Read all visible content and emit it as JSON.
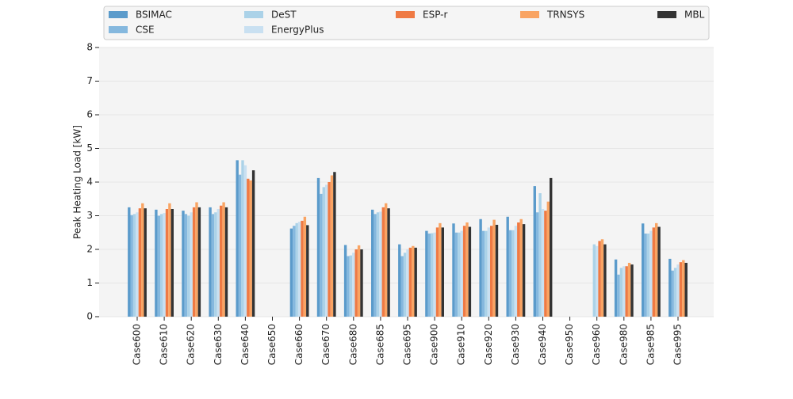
{
  "chart_data": {
    "type": "bar",
    "y_label": "Peak Heating Load [kW]",
    "categories": [
      "Case600",
      "Case610",
      "Case620",
      "Case630",
      "Case640",
      "Case650",
      "Case660",
      "Case670",
      "Case680",
      "Case685",
      "Case695",
      "Case900",
      "Case910",
      "Case920",
      "Case930",
      "Case940",
      "Case950",
      "Case960",
      "Case980",
      "Case985",
      "Case995"
    ],
    "series": [
      {
        "name": "BSIMAC",
        "color": "#5b9bcb",
        "values": [
          3.25,
          3.18,
          3.15,
          3.25,
          4.65,
          null,
          2.62,
          4.12,
          2.13,
          3.18,
          2.15,
          2.55,
          2.77,
          2.9,
          2.97,
          3.88,
          null,
          null,
          1.7,
          2.77,
          1.72
        ]
      },
      {
        "name": "CSE",
        "color": "#85b8de",
        "values": [
          3.02,
          3.0,
          3.05,
          3.05,
          4.22,
          null,
          2.7,
          3.65,
          1.8,
          3.05,
          1.8,
          2.47,
          2.5,
          2.55,
          2.57,
          3.1,
          null,
          null,
          1.25,
          2.47,
          1.37
        ]
      },
      {
        "name": "DeST",
        "color": "#abd2e8",
        "values": [
          3.05,
          3.05,
          3.0,
          3.1,
          4.65,
          null,
          2.78,
          3.85,
          1.82,
          3.1,
          1.9,
          2.48,
          2.5,
          2.55,
          2.57,
          3.67,
          null,
          2.15,
          1.45,
          2.47,
          1.45
        ]
      },
      {
        "name": "EnergyPlus",
        "color": "#c9e0f1",
        "values": [
          3.1,
          3.08,
          3.1,
          3.2,
          4.5,
          null,
          2.82,
          3.92,
          1.9,
          3.12,
          2.0,
          2.5,
          2.55,
          2.65,
          2.7,
          3.2,
          null,
          2.1,
          1.5,
          2.55,
          1.55
        ]
      },
      {
        "name": "ESP-r",
        "color": "#ef7a44",
        "values": [
          3.22,
          3.2,
          3.25,
          3.3,
          4.1,
          null,
          2.85,
          4.0,
          2.0,
          3.25,
          2.05,
          2.65,
          2.7,
          2.7,
          2.8,
          3.15,
          null,
          2.25,
          1.5,
          2.65,
          1.62
        ]
      },
      {
        "name": "TRNSYS",
        "color": "#f9a463",
        "values": [
          3.37,
          3.37,
          3.4,
          3.4,
          4.05,
          null,
          2.97,
          4.2,
          2.12,
          3.37,
          2.1,
          2.78,
          2.8,
          2.88,
          2.9,
          3.42,
          null,
          2.3,
          1.6,
          2.78,
          1.68
        ]
      },
      {
        "name": "MBL",
        "color": "#333333",
        "values": [
          3.22,
          3.2,
          3.25,
          3.25,
          4.35,
          null,
          2.72,
          4.3,
          2.0,
          3.22,
          2.05,
          2.65,
          2.67,
          2.73,
          2.75,
          4.12,
          null,
          2.15,
          1.55,
          2.67,
          1.6
        ]
      }
    ],
    "ylim": [
      0,
      8
    ],
    "yticks": [
      0,
      1,
      2,
      3,
      4,
      5,
      6,
      7,
      8
    ],
    "grid": true,
    "legend": "top"
  }
}
